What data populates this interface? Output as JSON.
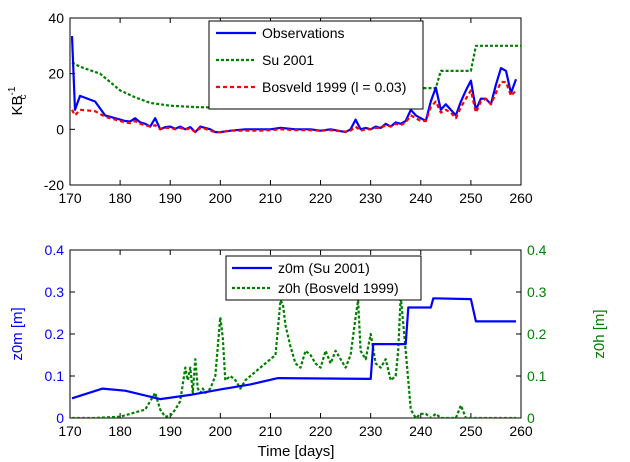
{
  "chart_data": [
    {
      "type": "line",
      "ylabel": "KB",
      "ylabel_sub": "c",
      "ylabel_sup": "-1",
      "xlim": [
        170,
        260
      ],
      "ylim": [
        -20,
        40
      ],
      "x_ticks": [
        170,
        180,
        190,
        200,
        210,
        220,
        230,
        240,
        250,
        260
      ],
      "y_ticks": [
        -20,
        0,
        20,
        40
      ],
      "legend": "top-center",
      "series": [
        {
          "name": "Observations",
          "color": "#0000ff",
          "style": "solid",
          "x": [
            170.4,
            171,
            172,
            175,
            177,
            180,
            181,
            182,
            183,
            184,
            185,
            186,
            187,
            188,
            189,
            190,
            191,
            192,
            193,
            194,
            195,
            196,
            197,
            198,
            199,
            200,
            202,
            205,
            208,
            210,
            212,
            215,
            218,
            220,
            222,
            225,
            226,
            227,
            228,
            229,
            230,
            231,
            232,
            233,
            234,
            235,
            236,
            237,
            238,
            239,
            240,
            241,
            242,
            243,
            244,
            245,
            246,
            247,
            248,
            249,
            250,
            251,
            252,
            253,
            254,
            255,
            256,
            257,
            258,
            259
          ],
          "y": [
            33.5,
            7,
            12,
            10,
            5,
            3.5,
            3,
            2.8,
            4,
            2.5,
            2,
            1,
            4,
            0,
            0.8,
            1,
            0.2,
            1,
            0,
            0.8,
            -1,
            1,
            0.5,
            0,
            -1,
            -1,
            -0.5,
            0,
            0,
            0,
            0.5,
            0,
            0,
            -0.5,
            0,
            -1,
            0,
            3.5,
            0,
            0.5,
            0,
            1,
            0.5,
            2,
            1,
            2.5,
            2,
            3,
            7,
            5,
            4,
            3,
            10,
            15,
            7,
            9,
            7,
            5,
            10,
            14,
            17.5,
            7,
            11,
            11,
            9,
            16,
            22,
            21,
            13,
            18
          ]
        },
        {
          "name": "Su 2001",
          "color": "#008000",
          "style": "dotted",
          "x": [
            170.4,
            172,
            176,
            178,
            180,
            183,
            186,
            190,
            195,
            200,
            210,
            220,
            230,
            231,
            233,
            235,
            237,
            238,
            243,
            244,
            250,
            251,
            260
          ],
          "y": [
            24,
            22.5,
            20,
            17,
            14,
            11.5,
            9.5,
            8.5,
            8,
            7.8,
            7.7,
            7.6,
            7.6,
            9.5,
            13,
            13,
            14.8,
            14.8,
            14.8,
            21,
            21,
            30,
            30
          ]
        },
        {
          "name": "Bosveld 1999 (l =  0.03)",
          "color": "#ff0000",
          "style": "dashed",
          "x": [
            170.4,
            171,
            172,
            175,
            177,
            180,
            181,
            182,
            183,
            184,
            185,
            186,
            187,
            188,
            189,
            190,
            191,
            192,
            193,
            194,
            195,
            196,
            197,
            198,
            199,
            200,
            202,
            205,
            208,
            210,
            212,
            215,
            218,
            220,
            222,
            225,
            226,
            227,
            228,
            229,
            230,
            231,
            232,
            233,
            234,
            235,
            236,
            237,
            238,
            239,
            240,
            241,
            242,
            243,
            244,
            245,
            246,
            247,
            248,
            249,
            250,
            251,
            252,
            253,
            254,
            255,
            256,
            257,
            258,
            259
          ],
          "y": [
            7,
            5,
            7,
            6.5,
            4.5,
            3,
            2.5,
            2.2,
            3,
            2,
            1.5,
            1,
            1.5,
            0,
            0.5,
            0.5,
            0,
            0.5,
            0,
            0.3,
            -1,
            0.5,
            0.2,
            -0.5,
            -1,
            -1,
            -0.5,
            -0.5,
            -0.5,
            -0.3,
            0,
            -0.3,
            -0.3,
            -0.5,
            -0.3,
            -0.8,
            -0.5,
            1,
            -0.5,
            0,
            0,
            0.5,
            0.5,
            1.5,
            1,
            2,
            1.5,
            2.5,
            5,
            4,
            3,
            3,
            8,
            10,
            6,
            7,
            6,
            4,
            8,
            11,
            14,
            6,
            10,
            11,
            9,
            13,
            17,
            17,
            12,
            14
          ]
        }
      ]
    },
    {
      "type": "line",
      "xlabel": "Time [days]",
      "ylabel": "z0m [m]",
      "ylabel_right": "z0h [m]",
      "xlim": [
        170,
        260
      ],
      "ylim": [
        0,
        0.4
      ],
      "ylim_right": [
        0,
        0.4
      ],
      "x_ticks": [
        170,
        180,
        190,
        200,
        210,
        220,
        230,
        240,
        250,
        260
      ],
      "y_ticks": [
        0,
        0.1,
        0.2,
        0.3,
        0.4
      ],
      "y_ticks_right": [
        0,
        0.1,
        0.2,
        0.3,
        0.4
      ],
      "legend": "top-center",
      "series": [
        {
          "name": "z0m (Su 2001)",
          "color": "#0000ff",
          "style": "solid",
          "axis": "left",
          "x": [
            170.4,
            176.5,
            181,
            188,
            194,
            200,
            206,
            211.5,
            230,
            230.5,
            237,
            237.5,
            242,
            242.5,
            250,
            251,
            259
          ],
          "y": [
            0.047,
            0.07,
            0.065,
            0.045,
            0.055,
            0.068,
            0.08,
            0.095,
            0.093,
            0.176,
            0.176,
            0.263,
            0.263,
            0.285,
            0.283,
            0.23,
            0.23
          ]
        },
        {
          "name": "z0h (Bosveld 1999)",
          "color": "#008000",
          "style": "dotted",
          "axis": "right",
          "x": [
            170.4,
            175,
            180,
            185,
            187,
            188,
            189,
            190,
            191,
            192,
            193,
            193.5,
            194,
            194.5,
            195,
            195.5,
            196,
            196.5,
            197,
            198,
            199,
            200,
            200.5,
            201,
            202,
            203,
            204,
            205,
            206,
            207,
            208,
            209,
            210,
            211,
            212,
            212.5,
            213,
            214,
            215,
            216,
            217,
            218,
            219,
            220,
            221,
            222,
            223,
            224,
            225,
            226,
            227,
            227.5,
            228,
            229,
            230,
            231,
            232,
            233,
            234,
            235,
            235.5,
            236,
            237,
            238,
            239,
            240,
            241,
            242,
            243,
            244,
            245,
            246,
            247,
            248,
            249,
            250,
            255,
            259
          ],
          "y": [
            0,
            0,
            0.003,
            0.02,
            0.06,
            0.02,
            0.003,
            0.005,
            0.02,
            0.04,
            0.12,
            0.09,
            0.12,
            0.06,
            0.14,
            0.07,
            0.06,
            0.07,
            0.06,
            0.07,
            0.1,
            0.24,
            0.19,
            0.09,
            0.1,
            0.09,
            0.07,
            0.09,
            0.1,
            0.11,
            0.12,
            0.13,
            0.14,
            0.15,
            0.28,
            0.27,
            0.22,
            0.17,
            0.13,
            0.12,
            0.16,
            0.15,
            0.13,
            0.12,
            0.16,
            0.13,
            0.16,
            0.14,
            0.12,
            0.15,
            0.24,
            0.28,
            0.16,
            0.14,
            0.2,
            0.13,
            0.12,
            0.14,
            0.09,
            0.1,
            0.16,
            0.29,
            0.16,
            0.02,
            0,
            0.01,
            0.01,
            0,
            0.01,
            0,
            0,
            0,
            0,
            0.03,
            0,
            0,
            0,
            0
          ]
        }
      ]
    }
  ]
}
